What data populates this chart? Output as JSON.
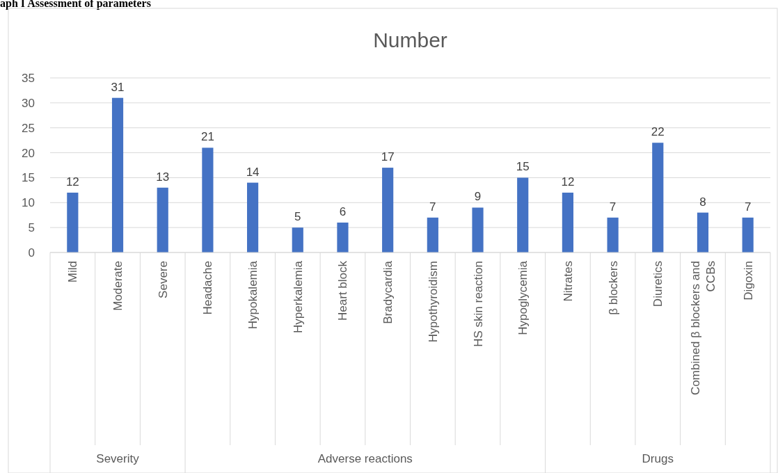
{
  "chart_data": {
    "type": "bar",
    "title": "Number",
    "categories": [
      "Mild",
      "Moderate",
      "Severe",
      "Headache",
      "Hypokalemia",
      "Hyperkalemia",
      "Heart block",
      "Bradycardia",
      "Hypothyroidism",
      "HS skin reaction",
      "Hypoglycemia",
      "Nitrates",
      "β blockers",
      "Diuretics",
      "Combined β blockers and CCBs",
      "Digoxin"
    ],
    "values": [
      12,
      31,
      13,
      21,
      14,
      5,
      6,
      17,
      7,
      9,
      15,
      12,
      7,
      22,
      8,
      7
    ],
    "color": "#4472c4",
    "ylim": [
      0,
      35
    ],
    "yticks": [
      0,
      5,
      10,
      15,
      20,
      25,
      30,
      35
    ],
    "grid": "y",
    "data_labels": true,
    "annotations": [
      "aph I Assessment of parameters",
      "Severity",
      "Adverse reactions",
      "Drugs"
    ]
  }
}
